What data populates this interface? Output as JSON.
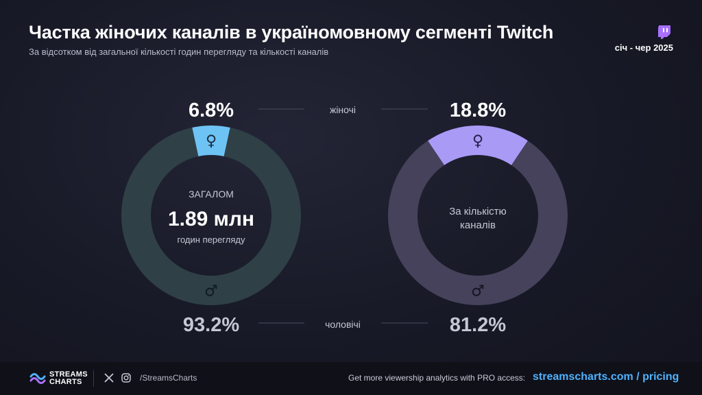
{
  "header": {
    "title": "Частка жіночих каналів в україномовному сегменті Twitch",
    "subtitle": "За відсотком від загальної кількості годин перегляду та кількості каналів",
    "period": "січ - чер 2025",
    "platform_icon": "twitch-icon"
  },
  "labels": {
    "female": "жіночі",
    "male": "чоловічі"
  },
  "chart_data": [
    {
      "type": "pie",
      "subtype": "donut",
      "categories": [
        "жіночі",
        "чоловічі"
      ],
      "values": [
        6.8,
        93.2
      ],
      "value_labels": [
        "6.8%",
        "93.2%"
      ],
      "colors": [
        "#6ec3f5",
        "#2f4047"
      ],
      "center": {
        "top": "ЗАГАЛОМ",
        "value": "1.89 млн",
        "bottom": "годин перегляду"
      }
    },
    {
      "type": "pie",
      "subtype": "donut",
      "categories": [
        "жіночі",
        "чоловічі"
      ],
      "values": [
        18.8,
        81.2
      ],
      "value_labels": [
        "18.8%",
        "81.2%"
      ],
      "colors": [
        "#a99af6",
        "#46425b"
      ],
      "center": {
        "line1": "За кількістю",
        "line2": "каналів"
      }
    }
  ],
  "footer": {
    "brand_line1": "STREAMS",
    "brand_line2": "CHARTS",
    "social_icons": [
      "x-icon",
      "instagram-icon"
    ],
    "handle": "/StreamsCharts",
    "pro_text": "Get more viewership analytics with PRO access:",
    "link_text": "streamscharts.com / pricing"
  }
}
